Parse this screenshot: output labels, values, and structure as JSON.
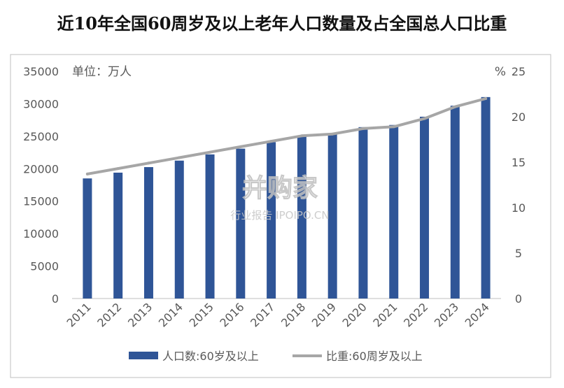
{
  "chart_data": {
    "type": "bar+line",
    "title": "近10年全国60周岁及以上老年人口数量及占全国总人口比重",
    "left_unit": "单位：万人",
    "right_unit": "%",
    "categories": [
      "2011",
      "2012",
      "2013",
      "2014",
      "2015",
      "2016",
      "2017",
      "2018",
      "2019",
      "2020",
      "2021",
      "2022",
      "2023",
      "2024"
    ],
    "series": [
      {
        "name": "人口数:60岁及以上",
        "type": "bar",
        "axis": "left",
        "color": "#2f5597",
        "values": [
          18499,
          19390,
          20243,
          21242,
          22200,
          23086,
          24090,
          24949,
          25388,
          26402,
          26736,
          28004,
          29697,
          31031
        ]
      },
      {
        "name": "比重:60周岁及以上",
        "type": "line",
        "axis": "right",
        "color": "#a6a6a6",
        "values": [
          13.7,
          14.3,
          14.9,
          15.5,
          16.1,
          16.7,
          17.3,
          17.9,
          18.1,
          18.7,
          18.9,
          19.8,
          21.1,
          22.0
        ]
      }
    ],
    "y_left": {
      "min": 0,
      "max": 35000,
      "step": 5000,
      "ticks": [
        "0",
        "5000",
        "10000",
        "15000",
        "20000",
        "25000",
        "30000",
        "35000"
      ]
    },
    "y_right": {
      "min": 0,
      "max": 25,
      "step": 5,
      "ticks": [
        "0",
        "5",
        "10",
        "15",
        "20",
        "25"
      ]
    },
    "grid": false,
    "legend_position": "bottom"
  },
  "watermark": {
    "brand": "并购家",
    "subtitle": "行业报告 IPOIPO.CN"
  }
}
